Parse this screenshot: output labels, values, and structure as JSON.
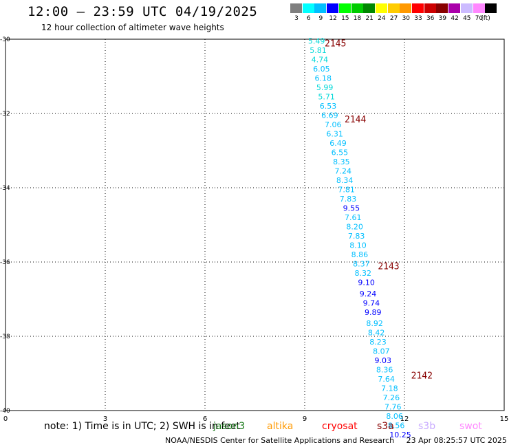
{
  "title": "12:00 – 23:59 UTC 04/19/2025",
  "subtitle": "12 hour collection of altimeter wave heights",
  "colorbar": {
    "unit": "(ft)",
    "bins": [
      {
        "label": "3",
        "color": "#7f7f7f"
      },
      {
        "label": "6",
        "color": "#00ffff"
      },
      {
        "label": "9",
        "color": "#00bfff"
      },
      {
        "label": "12",
        "color": "#0000ff"
      },
      {
        "label": "15",
        "color": "#00ff00"
      },
      {
        "label": "18",
        "color": "#00cc00"
      },
      {
        "label": "21",
        "color": "#008800"
      },
      {
        "label": "24",
        "color": "#ffff00"
      },
      {
        "label": "27",
        "color": "#ffcc00"
      },
      {
        "label": "30",
        "color": "#ff9900"
      },
      {
        "label": "33",
        "color": "#ff0000"
      },
      {
        "label": "36",
        "color": "#cc0000"
      },
      {
        "label": "39",
        "color": "#880000"
      },
      {
        "label": "42",
        "color": "#aa00aa"
      },
      {
        "label": "45",
        "color": "#ccbbff"
      },
      {
        "label": "70",
        "color": "#ff88ff"
      },
      {
        "label": "",
        "color": "#000000"
      }
    ]
  },
  "note": "note: 1) Time is in UTC; 2) SWH is in feet",
  "missions": [
    {
      "label": "jason3",
      "color": "#1a7a1a"
    },
    {
      "label": "altika",
      "color": "#ff9900"
    },
    {
      "label": "cryosat",
      "color": "#ff0000"
    },
    {
      "label": "s3a",
      "color": "#880000"
    },
    {
      "label": "s3b",
      "color": "#c8aaff"
    },
    {
      "label": "swot",
      "color": "#ff88ff"
    }
  ],
  "footer": "NOAA/NESDIS Center for Satellite Applications and Research     23 Apr 08:25:57 UTC 2025",
  "chart_data": {
    "type": "scatter",
    "xlim": [
      0,
      15
    ],
    "ylim": [
      -40,
      -30
    ],
    "x_ticks": [
      "0",
      "3",
      "6",
      "9",
      "12",
      "15"
    ],
    "y_ticks": [
      "-30",
      "-32",
      "-34",
      "-36",
      "-38",
      "-40"
    ],
    "grid": true,
    "pass_labels": [
      {
        "label": "2145",
        "x": 9.6,
        "y": -30.1,
        "color": "#880000"
      },
      {
        "label": "2144",
        "x": 10.2,
        "y": -32.15,
        "color": "#880000"
      },
      {
        "label": "2143",
        "x": 11.2,
        "y": -36.1,
        "color": "#880000"
      },
      {
        "label": "2142",
        "x": 12.2,
        "y": -39.05,
        "color": "#880000"
      }
    ],
    "points": [
      {
        "x": 9.1,
        "y": -30.05,
        "v": "5.49",
        "color": "#00d8d8"
      },
      {
        "x": 9.15,
        "y": -30.3,
        "v": "5.81",
        "color": "#00d8d8"
      },
      {
        "x": 9.2,
        "y": -30.55,
        "v": "4.74",
        "color": "#00d8d8"
      },
      {
        "x": 9.25,
        "y": -30.8,
        "v": "6.05",
        "color": "#00bfff"
      },
      {
        "x": 9.3,
        "y": -31.05,
        "v": "6.18",
        "color": "#00bfff"
      },
      {
        "x": 9.35,
        "y": -31.3,
        "v": "5.99",
        "color": "#00d8d8"
      },
      {
        "x": 9.4,
        "y": -31.55,
        "v": "5.71",
        "color": "#00d8d8"
      },
      {
        "x": 9.45,
        "y": -31.8,
        "v": "6.53",
        "color": "#00bfff"
      },
      {
        "x": 9.5,
        "y": -32.05,
        "v": "6.69",
        "color": "#00bfff"
      },
      {
        "x": 9.6,
        "y": -32.3,
        "v": "7.06",
        "color": "#00bfff"
      },
      {
        "x": 9.65,
        "y": -32.55,
        "v": "6.31",
        "color": "#00bfff"
      },
      {
        "x": 9.75,
        "y": -32.8,
        "v": "6.49",
        "color": "#00bfff"
      },
      {
        "x": 9.8,
        "y": -33.05,
        "v": "6.55",
        "color": "#00bfff"
      },
      {
        "x": 9.85,
        "y": -33.3,
        "v": "8.35",
        "color": "#00bfff"
      },
      {
        "x": 9.9,
        "y": -33.55,
        "v": "7.24",
        "color": "#00bfff"
      },
      {
        "x": 9.95,
        "y": -33.8,
        "v": "8.34",
        "color": "#00bfff"
      },
      {
        "x": 10.0,
        "y": -34.05,
        "v": "7.81",
        "color": "#00bfff"
      },
      {
        "x": 10.05,
        "y": -34.3,
        "v": "7.83",
        "color": "#00bfff"
      },
      {
        "x": 10.15,
        "y": -34.55,
        "v": "9.55",
        "color": "#0000ff"
      },
      {
        "x": 10.2,
        "y": -34.8,
        "v": "7.61",
        "color": "#00bfff"
      },
      {
        "x": 10.25,
        "y": -35.05,
        "v": "8.20",
        "color": "#00bfff"
      },
      {
        "x": 10.3,
        "y": -35.3,
        "v": "7.83",
        "color": "#00bfff"
      },
      {
        "x": 10.35,
        "y": -35.55,
        "v": "8.10",
        "color": "#00bfff"
      },
      {
        "x": 10.4,
        "y": -35.8,
        "v": "8.86",
        "color": "#00bfff"
      },
      {
        "x": 10.45,
        "y": -36.05,
        "v": "8.37",
        "color": "#00bfff"
      },
      {
        "x": 10.5,
        "y": -36.3,
        "v": "8.32",
        "color": "#00bfff"
      },
      {
        "x": 10.6,
        "y": -36.55,
        "v": "9.10",
        "color": "#0000ff"
      },
      {
        "x": 10.65,
        "y": -36.85,
        "v": "9.24",
        "color": "#0000ff"
      },
      {
        "x": 10.75,
        "y": -37.1,
        "v": "9.74",
        "color": "#0000ff"
      },
      {
        "x": 10.8,
        "y": -37.35,
        "v": "9.89",
        "color": "#0000ff"
      },
      {
        "x": 10.85,
        "y": -37.65,
        "v": "8.92",
        "color": "#00bfff"
      },
      {
        "x": 10.9,
        "y": -37.9,
        "v": "8.42",
        "color": "#00bfff"
      },
      {
        "x": 10.95,
        "y": -38.15,
        "v": "8.23",
        "color": "#00bfff"
      },
      {
        "x": 11.05,
        "y": -38.4,
        "v": "8.07",
        "color": "#00bfff"
      },
      {
        "x": 11.1,
        "y": -38.65,
        "v": "9.03",
        "color": "#0000ff"
      },
      {
        "x": 11.15,
        "y": -38.9,
        "v": "8.36",
        "color": "#00bfff"
      },
      {
        "x": 11.2,
        "y": -39.15,
        "v": "7.64",
        "color": "#00bfff"
      },
      {
        "x": 11.3,
        "y": -39.4,
        "v": "7.18",
        "color": "#00bfff"
      },
      {
        "x": 11.35,
        "y": -39.65,
        "v": "7.26",
        "color": "#00bfff"
      },
      {
        "x": 11.4,
        "y": -39.9,
        "v": "7.76",
        "color": "#00bfff"
      },
      {
        "x": 11.45,
        "y": -40.15,
        "v": "8.06",
        "color": "#00bfff"
      },
      {
        "x": 11.5,
        "y": -40.4,
        "v": "8.56",
        "color": "#00bfff"
      },
      {
        "x": 11.55,
        "y": -40.65,
        "v": "10.25",
        "color": "#0000ff"
      }
    ]
  }
}
